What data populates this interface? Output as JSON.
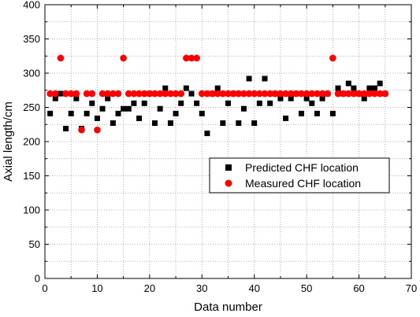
{
  "chart_data": {
    "type": "scatter",
    "xlabel": "Data number",
    "ylabel": "Axial length/cm",
    "xlim": [
      0,
      70
    ],
    "ylim": [
      0,
      400
    ],
    "xticks": [
      0,
      10,
      20,
      30,
      40,
      50,
      60,
      70
    ],
    "yticks": [
      0,
      50,
      100,
      150,
      200,
      250,
      300,
      350,
      400
    ],
    "grid": true,
    "legend_position": "lower-right",
    "series": [
      {
        "name": "Predicted CHF location",
        "marker": "square",
        "color": "#000000",
        "x": [
          1,
          2,
          3,
          4,
          5,
          6,
          7,
          8,
          9,
          10,
          11,
          12,
          13,
          14,
          15,
          16,
          17,
          18,
          19,
          20,
          21,
          22,
          23,
          24,
          25,
          26,
          27,
          28,
          29,
          30,
          31,
          32,
          33,
          34,
          35,
          36,
          37,
          38,
          39,
          40,
          41,
          42,
          43,
          44,
          45,
          46,
          47,
          48,
          49,
          50,
          51,
          52,
          53,
          54,
          55,
          56,
          57,
          58,
          59,
          60,
          61,
          62,
          63,
          64,
          65
        ],
        "y": [
          241,
          263,
          270,
          219,
          241,
          263,
          219,
          241,
          256,
          234,
          248,
          263,
          227,
          241,
          248,
          248,
          256,
          234,
          256,
          270,
          227,
          248,
          278,
          227,
          241,
          256,
          278,
          270,
          256,
          241,
          212,
          270,
          278,
          227,
          256,
          270,
          227,
          248,
          292,
          227,
          256,
          292,
          256,
          270,
          263,
          234,
          263,
          270,
          241,
          263,
          256,
          241,
          263,
          270,
          241,
          278,
          270,
          285,
          278,
          270,
          263,
          278,
          278,
          285,
          270
        ]
      },
      {
        "name": "Measured CHF location",
        "marker": "circle",
        "color": "#ff0000",
        "x": [
          1,
          2,
          3,
          4,
          5,
          6,
          7,
          8,
          9,
          10,
          11,
          12,
          13,
          14,
          15,
          16,
          17,
          18,
          19,
          20,
          21,
          22,
          23,
          24,
          25,
          26,
          27,
          28,
          29,
          30,
          31,
          32,
          33,
          34,
          35,
          36,
          37,
          38,
          39,
          40,
          41,
          42,
          43,
          44,
          45,
          46,
          47,
          48,
          49,
          50,
          51,
          52,
          53,
          54,
          55,
          56,
          57,
          58,
          59,
          60,
          61,
          62,
          63,
          64,
          65
        ],
        "y": [
          270,
          270,
          322,
          270,
          270,
          270,
          217,
          270,
          270,
          217,
          270,
          270,
          270,
          270,
          322,
          270,
          270,
          270,
          270,
          270,
          270,
          270,
          270,
          270,
          270,
          270,
          322,
          322,
          322,
          270,
          270,
          270,
          270,
          270,
          270,
          270,
          270,
          270,
          270,
          270,
          270,
          270,
          270,
          270,
          270,
          270,
          270,
          270,
          270,
          270,
          270,
          270,
          270,
          270,
          322,
          270,
          270,
          270,
          270,
          270,
          270,
          270,
          270,
          270,
          270
        ]
      }
    ]
  }
}
